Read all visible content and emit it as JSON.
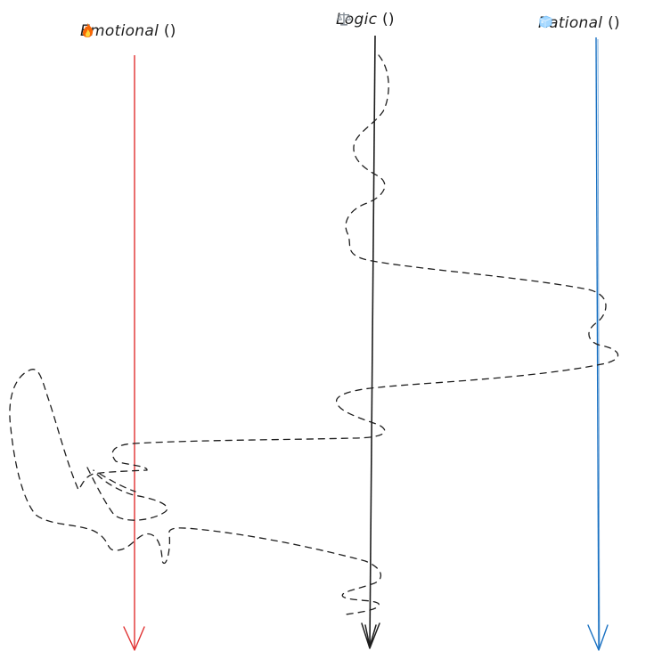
{
  "axes": [
    {
      "id": "emotional",
      "name": "Emotional",
      "icon": "fire-icon",
      "color": "#e03131"
    },
    {
      "id": "logic",
      "name": "Logic",
      "icon": "balance-scale-icon",
      "color": "#1e1e1e"
    },
    {
      "id": "rational",
      "name": "Rational",
      "icon": "ice-cube-icon",
      "color": "#1971c2"
    }
  ],
  "path": {
    "style": "dashed",
    "color": "#1e1e1e"
  }
}
